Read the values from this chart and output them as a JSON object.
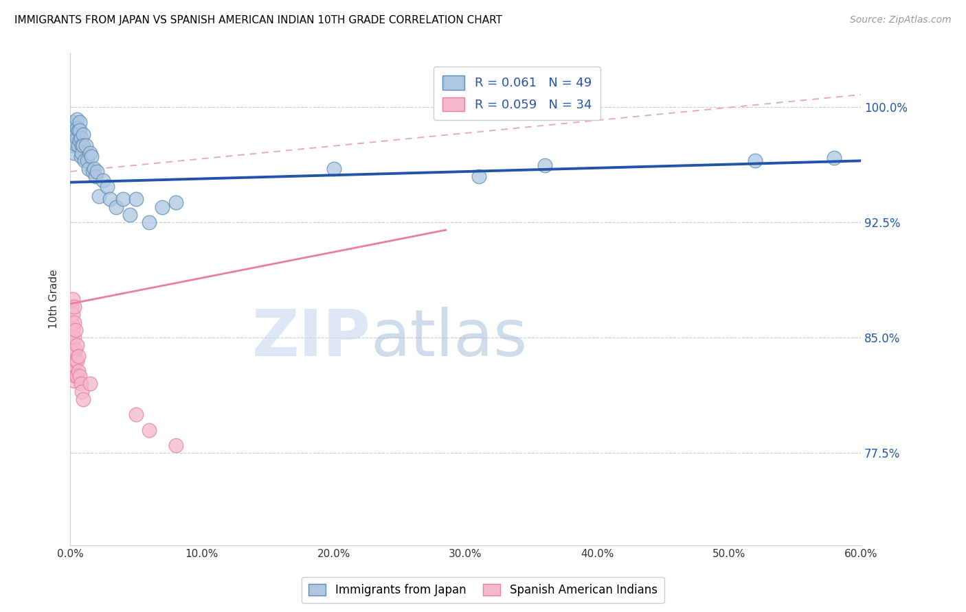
{
  "title": "IMMIGRANTS FROM JAPAN VS SPANISH AMERICAN INDIAN 10TH GRADE CORRELATION CHART",
  "source": "Source: ZipAtlas.com",
  "ylabel": "10th Grade",
  "xlim": [
    0.0,
    0.6
  ],
  "ylim": [
    0.715,
    1.035
  ],
  "yticks": [
    0.775,
    0.85,
    0.925,
    1.0
  ],
  "ytick_labels": [
    "77.5%",
    "85.0%",
    "92.5%",
    "100.0%"
  ],
  "xticks": [
    0.0,
    0.1,
    0.2,
    0.3,
    0.4,
    0.5,
    0.6
  ],
  "xtick_labels": [
    "0.0%",
    "10.0%",
    "20.0%",
    "30.0%",
    "40.0%",
    "50.0%",
    "60.0%"
  ],
  "blue_color": "#5B8DB8",
  "pink_color": "#E87DA0",
  "blue_fill": "#AEC6E0",
  "pink_fill": "#F4B8CC",
  "blue_R": 0.061,
  "blue_N": 49,
  "pink_R": 0.059,
  "pink_N": 34,
  "legend_label_blue": "Immigrants from Japan",
  "legend_label_pink": "Spanish American Indians",
  "watermark_zip": "ZIP",
  "watermark_atlas": "atlas",
  "blue_points_x": [
    0.001,
    0.002,
    0.002,
    0.003,
    0.003,
    0.003,
    0.004,
    0.004,
    0.004,
    0.005,
    0.005,
    0.005,
    0.006,
    0.006,
    0.007,
    0.007,
    0.007,
    0.008,
    0.008,
    0.009,
    0.009,
    0.01,
    0.01,
    0.011,
    0.012,
    0.013,
    0.014,
    0.015,
    0.016,
    0.017,
    0.018,
    0.019,
    0.02,
    0.022,
    0.025,
    0.028,
    0.03,
    0.035,
    0.04,
    0.045,
    0.05,
    0.06,
    0.07,
    0.08,
    0.2,
    0.31,
    0.36,
    0.52,
    0.58
  ],
  "blue_points_y": [
    0.98,
    0.99,
    0.975,
    0.985,
    0.978,
    0.97,
    0.988,
    0.982,
    0.976,
    0.992,
    0.986,
    0.98,
    0.985,
    0.975,
    0.99,
    0.985,
    0.978,
    0.968,
    0.98,
    0.975,
    0.97,
    0.982,
    0.975,
    0.965,
    0.975,
    0.965,
    0.96,
    0.97,
    0.968,
    0.958,
    0.96,
    0.955,
    0.958,
    0.942,
    0.952,
    0.948,
    0.94,
    0.935,
    0.94,
    0.93,
    0.94,
    0.925,
    0.935,
    0.938,
    0.96,
    0.955,
    0.962,
    0.965,
    0.967
  ],
  "pink_points_x": [
    0.001,
    0.001,
    0.001,
    0.001,
    0.001,
    0.002,
    0.002,
    0.002,
    0.002,
    0.002,
    0.002,
    0.003,
    0.003,
    0.003,
    0.003,
    0.003,
    0.003,
    0.004,
    0.004,
    0.004,
    0.004,
    0.005,
    0.005,
    0.005,
    0.006,
    0.006,
    0.007,
    0.008,
    0.009,
    0.01,
    0.015,
    0.05,
    0.06,
    0.08
  ],
  "pink_points_y": [
    0.87,
    0.86,
    0.85,
    0.838,
    0.828,
    0.875,
    0.865,
    0.855,
    0.848,
    0.838,
    0.828,
    0.87,
    0.86,
    0.85,
    0.84,
    0.832,
    0.822,
    0.855,
    0.842,
    0.835,
    0.825,
    0.845,
    0.835,
    0.825,
    0.838,
    0.828,
    0.825,
    0.82,
    0.815,
    0.81,
    0.82,
    0.8,
    0.79,
    0.78
  ],
  "blue_line_x": [
    0.0,
    0.6
  ],
  "blue_line_y": [
    0.951,
    0.965
  ],
  "pink_line_x": [
    0.0,
    0.285
  ],
  "pink_line_y": [
    0.872,
    0.92
  ],
  "dashed_line_x": [
    0.0,
    0.6
  ],
  "dashed_line_y": [
    0.958,
    1.008
  ]
}
